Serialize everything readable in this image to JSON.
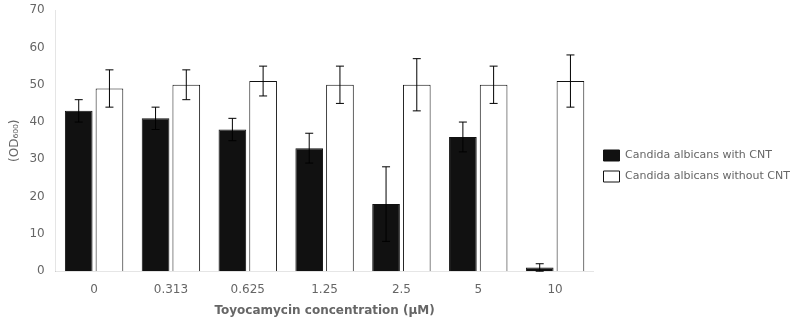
{
  "chart_data": {
    "type": "bar",
    "categories": [
      "0",
      "0.313",
      "0.625",
      "1.25",
      "2.5",
      "5",
      "10"
    ],
    "series": [
      {
        "name": "Candida albicans with CNT",
        "color": "#111111",
        "values": [
          43,
          41,
          38,
          33,
          18,
          36,
          1
        ],
        "errors": [
          3,
          3,
          3,
          4,
          10,
          4,
          1
        ]
      },
      {
        "name": "Candida albicans without CNT",
        "color": "#ffffff",
        "values": [
          49,
          50,
          51,
          50,
          50,
          50,
          51
        ],
        "errors": [
          5,
          4,
          4,
          5,
          7,
          5,
          7
        ]
      }
    ],
    "xlabel": "Toyocamycin concentration (μM)",
    "ylabel": "(OD₆₀₀)",
    "ylim": [
      0,
      70
    ],
    "yticks": [
      0,
      10,
      20,
      30,
      40,
      50,
      60,
      70
    ],
    "grid": false,
    "legend": "right",
    "annotations": [
      "CNT",
      "Toyocamycin"
    ]
  }
}
